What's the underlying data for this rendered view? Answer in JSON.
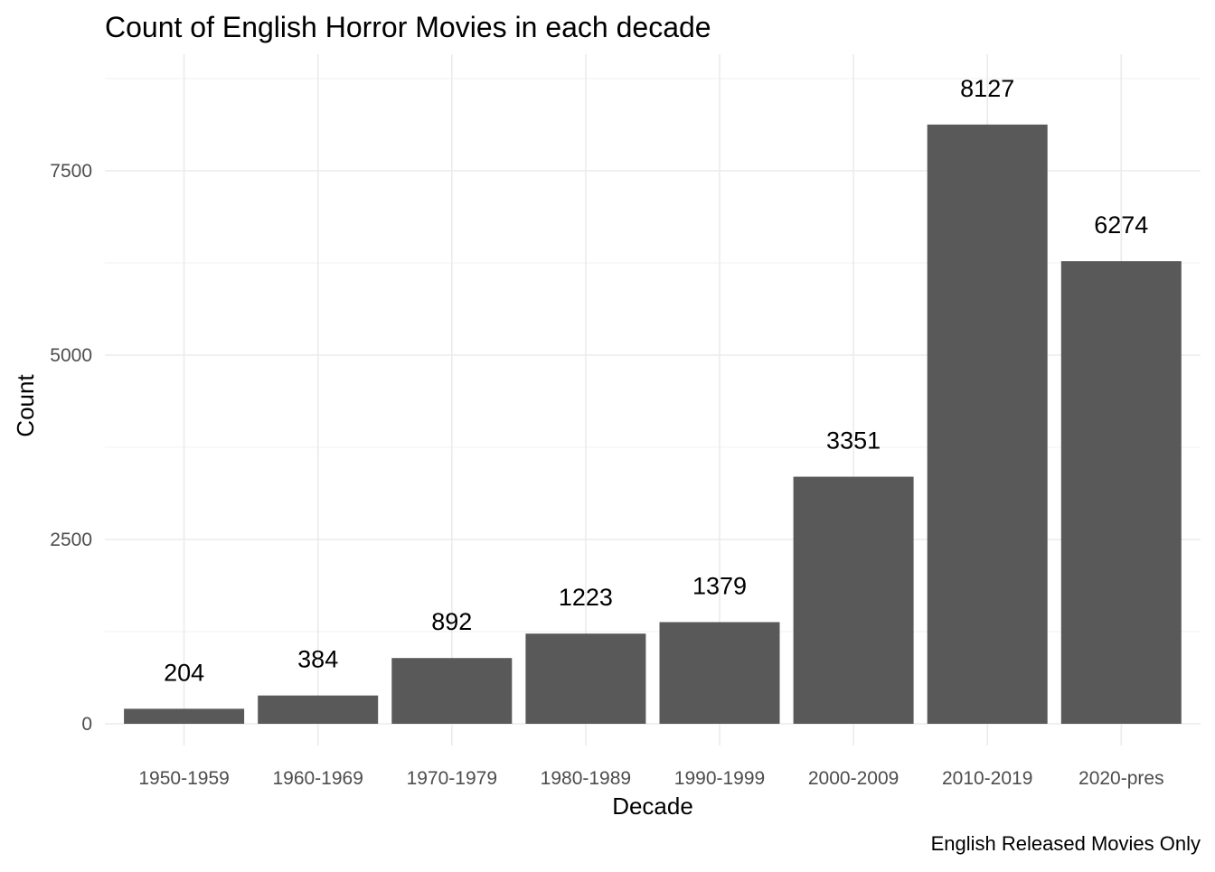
{
  "chart_data": {
    "type": "bar",
    "title": "Count of English Horror Movies in each decade",
    "caption": "English Released Movies Only",
    "xlabel": "Decade",
    "ylabel": "Count",
    "categories": [
      "1950-1959",
      "1960-1969",
      "1970-1979",
      "1980-1989",
      "1990-1999",
      "2000-2009",
      "2010-2019",
      "2020-pres"
    ],
    "values": [
      204,
      384,
      892,
      1223,
      1379,
      3351,
      8127,
      6274
    ],
    "data_labels": [
      "204",
      "384",
      "892",
      "1223",
      "1379",
      "3351",
      "8127",
      "6274"
    ],
    "y_ticks": [
      0,
      2500,
      5000,
      7500
    ],
    "y_tick_labels": [
      "0",
      "2500",
      "5000",
      "7500"
    ],
    "ylim": [
      0,
      8750
    ],
    "grid": true,
    "legend": "none",
    "colors": {
      "bar": "#595959",
      "grid_major": "#ebebeb",
      "grid_minor": "#f3f3f3",
      "tick_text": "#4d4d4d",
      "text": "#000000"
    }
  }
}
